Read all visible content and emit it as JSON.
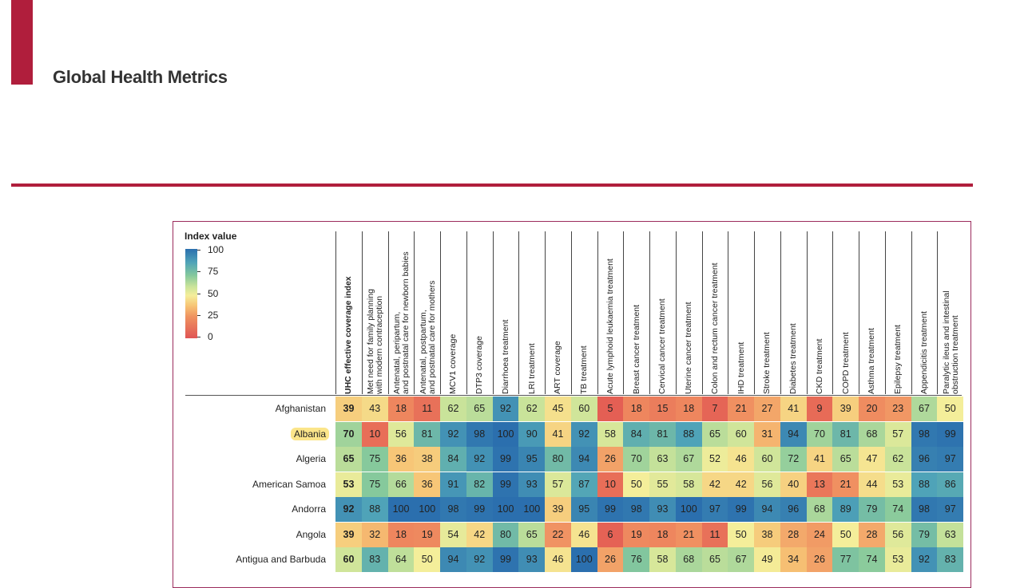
{
  "header": {
    "journal_title": "Global Health Metrics"
  },
  "legend": {
    "title": "Index value",
    "ticks": [
      "100",
      "75",
      "50",
      "25",
      "0"
    ]
  },
  "columns": [
    "UHC effective coverage index",
    "Met need for family planning\nwith modern contraception",
    "Antenatal, peripartum,\nand postnatal care for newborn babies",
    "Antenatal, postpartum,\nand postnatal care for mothers",
    "MCV1 coverage",
    "DTP3 coverage",
    "Diarrhoea treatment",
    "LRI treatment",
    "ART coverage",
    "TB treatment",
    "Acute lymphoid leukaemia treatment",
    "Breast cancer treatment",
    "Cervical cancer treatment",
    "Uterine cancer treatment",
    "Colon and rectum cancer treatment",
    "IHD treatment",
    "Stroke treatment",
    "Diabetes treatment",
    "CKD treatment",
    "COPD treatment",
    "Asthma treatment",
    "Epilepsy treatment",
    "Appendicitis treatment",
    "Paralytic ileus and intestinal\nobstruction treatment"
  ],
  "rows": [
    {
      "country": "Afghanistan",
      "highlight": false,
      "values": [
        39,
        43,
        18,
        11,
        62,
        65,
        92,
        62,
        45,
        60,
        5,
        18,
        15,
        18,
        7,
        21,
        27,
        41,
        9,
        39,
        20,
        23,
        67,
        50
      ]
    },
    {
      "country": "Albania",
      "highlight": true,
      "values": [
        70,
        10,
        56,
        81,
        92,
        98,
        100,
        90,
        41,
        92,
        58,
        84,
        81,
        88,
        65,
        60,
        31,
        94,
        70,
        81,
        68,
        57,
        98,
        99
      ]
    },
    {
      "country": "Algeria",
      "highlight": false,
      "values": [
        65,
        75,
        36,
        38,
        84,
        92,
        99,
        95,
        80,
        94,
        26,
        70,
        63,
        67,
        52,
        46,
        60,
        72,
        41,
        65,
        47,
        62,
        96,
        97
      ]
    },
    {
      "country": "American Samoa",
      "highlight": false,
      "values": [
        53,
        75,
        66,
        36,
        91,
        82,
        99,
        93,
        57,
        87,
        10,
        50,
        55,
        58,
        42,
        42,
        56,
        40,
        13,
        21,
        44,
        53,
        88,
        86
      ]
    },
    {
      "country": "Andorra",
      "highlight": false,
      "values": [
        92,
        88,
        100,
        100,
        98,
        99,
        100,
        100,
        39,
        95,
        99,
        98,
        93,
        100,
        97,
        99,
        94,
        96,
        68,
        89,
        79,
        74,
        98,
        97
      ]
    },
    {
      "country": "Angola",
      "highlight": false,
      "values": [
        39,
        32,
        18,
        19,
        54,
        42,
        80,
        65,
        22,
        46,
        6,
        19,
        18,
        21,
        11,
        50,
        38,
        28,
        24,
        50,
        28,
        56,
        79,
        63
      ]
    },
    {
      "country": "Antigua and Barbuda",
      "highlight": false,
      "values": [
        60,
        83,
        64,
        50,
        94,
        92,
        99,
        93,
        46,
        100,
        26,
        76,
        58,
        68,
        65,
        67,
        49,
        34,
        26,
        77,
        74,
        53,
        92,
        83
      ]
    }
  ]
}
